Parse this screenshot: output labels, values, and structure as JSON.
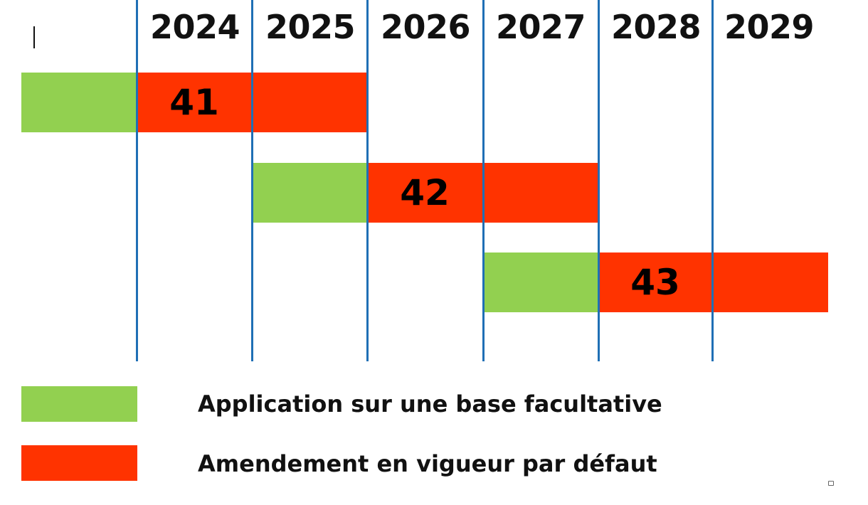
{
  "years": [
    "2024",
    "2025",
    "2026",
    "2027",
    "2028",
    "2029"
  ],
  "amendments": [
    {
      "label": "41",
      "optional_start": "2023",
      "optional_end": "2024",
      "default_start": "2024",
      "default_end": "2026"
    },
    {
      "label": "42",
      "optional_start": "2025",
      "optional_end": "2026",
      "default_start": "2026",
      "default_end": "2028"
    },
    {
      "label": "43",
      "optional_start": "2027",
      "optional_end": "2028",
      "default_start": "2028",
      "default_end": "2030"
    }
  ],
  "legend": {
    "optional_label": "Application sur une base facultative",
    "default_label": "Amendement en vigueur par défaut"
  },
  "colors": {
    "optional": "#92D050",
    "default": "#FF3300",
    "gridline": "#1F6FB5"
  }
}
